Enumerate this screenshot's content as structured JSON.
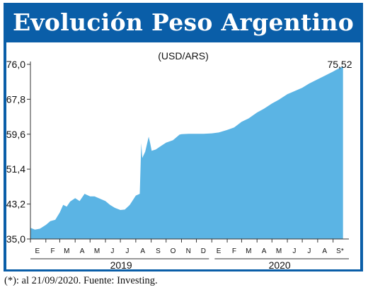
{
  "chart_data": {
    "type": "area",
    "title": "Evolución Peso Argentino",
    "subtitle": "(USD/ARS)",
    "ylim": [
      35.0,
      76.0
    ],
    "yticks": [
      "76,0",
      "67,8",
      "59,6",
      "51,4",
      "43,2",
      "35,0"
    ],
    "ytick_values": [
      76.0,
      67.8,
      59.6,
      51.4,
      43.2,
      35.0
    ],
    "months_2019": [
      "E",
      "F",
      "M",
      "A",
      "M",
      "J",
      "J",
      "A",
      "S",
      "O",
      "N",
      "D"
    ],
    "months_2020": [
      "E",
      "F",
      "M",
      "A",
      "M",
      "J",
      "J",
      "A",
      "S*"
    ],
    "years": [
      "2019",
      "2020"
    ],
    "last_value_label": "75,52",
    "series": [
      {
        "x": [
          "2019-01-01",
          "2019-01-10",
          "2019-01-20",
          "2019-02-01",
          "2019-02-10",
          "2019-02-20",
          "2019-03-01",
          "2019-03-08",
          "2019-03-15",
          "2019-03-22",
          "2019-04-01",
          "2019-04-10",
          "2019-04-20",
          "2019-05-01",
          "2019-05-10",
          "2019-05-20",
          "2019-06-01",
          "2019-06-10",
          "2019-06-20",
          "2019-07-01",
          "2019-07-10",
          "2019-07-20",
          "2019-08-01",
          "2019-08-09",
          "2019-08-12",
          "2019-08-14",
          "2019-08-20",
          "2019-08-27",
          "2019-08-30",
          "2019-09-02",
          "2019-09-10",
          "2019-09-20",
          "2019-10-01",
          "2019-10-15",
          "2019-10-28",
          "2019-11-01",
          "2019-11-15",
          "2019-12-01",
          "2019-12-15",
          "2020-01-01",
          "2020-01-15",
          "2020-02-01",
          "2020-02-15",
          "2020-03-01",
          "2020-03-15",
          "2020-04-01",
          "2020-04-15",
          "2020-05-01",
          "2020-05-15",
          "2020-06-01",
          "2020-06-15",
          "2020-07-01",
          "2020-07-15",
          "2020-08-01",
          "2020-08-15",
          "2020-09-01",
          "2020-09-10",
          "2020-09-21"
        ],
        "values": [
          37.6,
          37.2,
          37.4,
          38.3,
          39.2,
          39.5,
          41.2,
          43.0,
          42.6,
          43.8,
          44.6,
          43.9,
          45.6,
          45.0,
          45.0,
          44.5,
          43.9,
          43.0,
          42.3,
          41.8,
          41.9,
          43.0,
          45.2,
          45.6,
          57.5,
          54.0,
          55.5,
          59.0,
          57.5,
          55.7,
          56.0,
          56.8,
          57.6,
          58.2,
          59.5,
          59.6,
          59.7,
          59.7,
          59.7,
          59.8,
          60.0,
          60.6,
          61.2,
          62.5,
          63.3,
          64.7,
          65.6,
          66.8,
          67.7,
          69.0,
          69.7,
          70.5,
          71.5,
          72.5,
          73.3,
          74.3,
          74.9,
          75.52
        ]
      }
    ],
    "source_note": "(*): al 21/09/2020. Fuente: Investing.",
    "colors": {
      "frame": "#0a5ea8",
      "plot_bg": "#ffffff",
      "area": "#5bb4e4",
      "axis": "#333333"
    }
  }
}
